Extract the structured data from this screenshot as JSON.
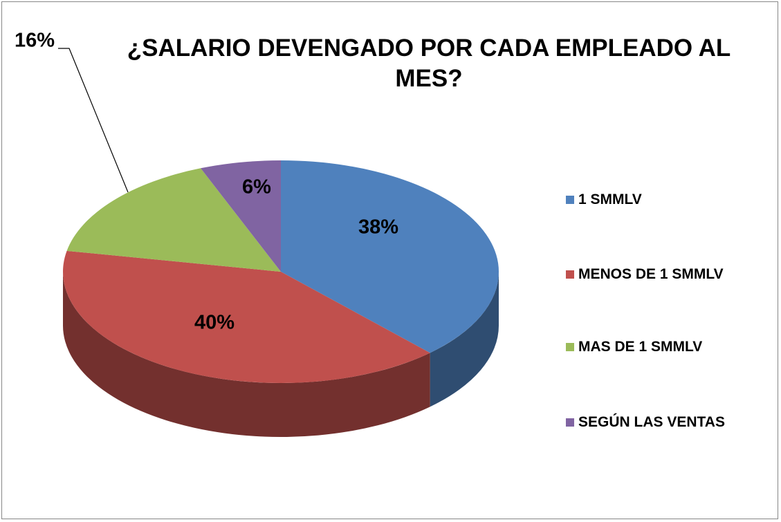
{
  "chart_data": {
    "type": "pie",
    "title": "¿SALARIO DEVENGADO POR CADA EMPLEADO AL MES?",
    "categories": [
      "1 SMMLV",
      "MENOS DE 1 SMMLV",
      "MAS DE 1 SMMLV",
      "SEGÚN LAS VENTAS"
    ],
    "values": [
      38,
      40,
      16,
      6
    ],
    "value_labels": [
      "38%",
      "40%",
      "16%",
      "6%"
    ],
    "colors": [
      "#4f81bd",
      "#c0504d",
      "#9bbb59",
      "#8064a2"
    ],
    "legend": "right"
  }
}
